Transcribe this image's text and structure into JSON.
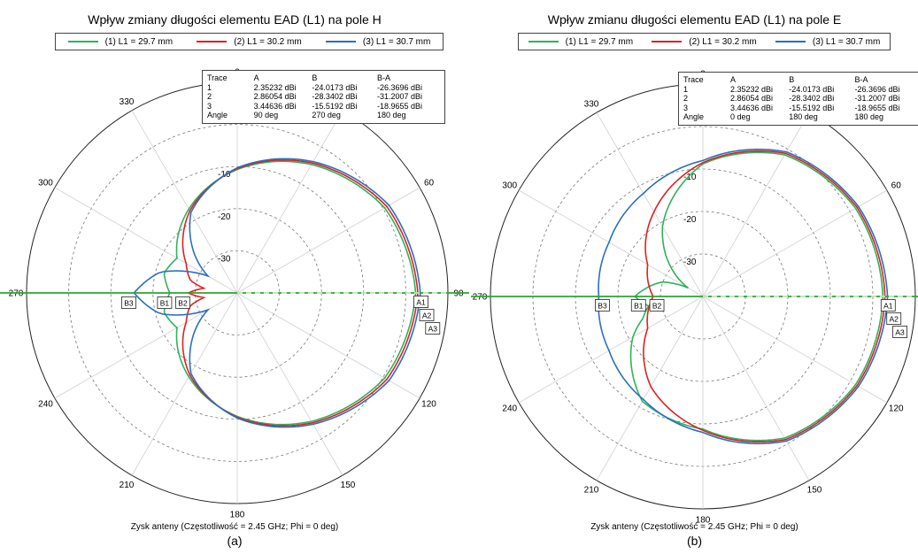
{
  "panels": [
    {
      "title": "Wpływ zmiany długości elementu EAD (L1) na pole H",
      "xlabel": "Zysk anteny (Częstotliwość = 2.45 GHz; Phi = 0 deg)",
      "caption": "(a)",
      "legend": [
        "(1) L1 = 29.7 mm",
        "(2) L1 = 30.2 mm",
        "(3) L1 = 30.7 mm"
      ],
      "marker_table": {
        "headers": [
          "Trace",
          "A",
          "B",
          "B-A"
        ],
        "rows": [
          [
            "1",
            "2.35232 dBi",
            "-24.0173 dBi",
            "-26.3696 dBi"
          ],
          [
            "2",
            "2.86054 dBi",
            "-28.3402 dBi",
            "-31.2007 dBi"
          ],
          [
            "3",
            "3.44636 dBi",
            "-15.5192 dBi",
            "-18.9655 dBi"
          ],
          [
            "Angle",
            "90 deg",
            "270 deg",
            "180 deg"
          ]
        ]
      },
      "markers": [
        "A1",
        "A2",
        "A3",
        "B1",
        "B2",
        "B3"
      ],
      "angle_labels": [
        "0",
        "30",
        "60",
        "90",
        "120",
        "150",
        "180",
        "210",
        "240",
        "270",
        "300",
        "330"
      ],
      "radial_labels": [
        "-10",
        "-20",
        "-30"
      ]
    },
    {
      "title": "Wpływ zmianu długości elementu EAD (L1) na pole E",
      "xlabel": "Zysk anteny (Częstotliwość = 2.45 GHz; Phi = 0 deg)",
      "caption": "(b)",
      "legend": [
        "(1) L1 = 29.7 mm",
        "(2) L1 = 30.2 mm",
        "(3) L1 = 30.7 mm"
      ],
      "marker_table": {
        "headers": [
          "Trace",
          "A",
          "B",
          "B-A"
        ],
        "rows": [
          [
            "1",
            "2.35232 dBi",
            "-24.0173 dBi",
            "-26.3696 dBi"
          ],
          [
            "2",
            "2.86054 dBi",
            "-28.3402 dBi",
            "-31.2007 dBi"
          ],
          [
            "3",
            "3.44636 dBi",
            "-15.5192 dBi",
            "-18.9655 dBi"
          ],
          [
            "Angle",
            "0 deg",
            "180 deg",
            "180 deg"
          ]
        ]
      },
      "markers": [
        "A1",
        "A2",
        "A3",
        "B1",
        "B2",
        "B3"
      ],
      "angle_labels": [
        "90",
        "60",
        "30",
        "0",
        "330",
        "300",
        "270",
        "240",
        "210",
        "180",
        "150",
        "120"
      ],
      "radial_labels": [
        "-10",
        "-20",
        "-30"
      ]
    }
  ],
  "chart_data": [
    {
      "type": "polar-line",
      "title": "Wpływ zmiany długości elementu EAD (L1) na pole H",
      "xlabel": "Zysk anteny (Częstotliwość = 2.45 GHz; Phi = 0 deg)",
      "r_ticks": [
        -10,
        -20,
        -30
      ],
      "r_range": [
        -40,
        10
      ],
      "theta_labels": [
        0,
        30,
        60,
        90,
        120,
        150,
        180,
        210,
        240,
        270,
        300,
        330
      ],
      "colors": [
        "#2db35b",
        "#e02020",
        "#2a6fc0"
      ],
      "series": [
        {
          "name": "(1) L1 = 29.7 mm",
          "theta": [
            0,
            30,
            60,
            90,
            120,
            150,
            180,
            210,
            240,
            255,
            270,
            285,
            300,
            330
          ],
          "values": [
            -10.7,
            -4.8,
            0.4,
            2.35,
            0.4,
            -4.8,
            -10.7,
            -17.0,
            -23.5,
            -22.0,
            -24.0,
            -22.0,
            -23.5,
            -17.0
          ]
        },
        {
          "name": "(2) L1 = 30.2 mm",
          "theta": [
            0,
            30,
            60,
            90,
            120,
            150,
            180,
            210,
            240,
            255,
            262,
            270,
            278,
            285,
            300,
            330
          ],
          "values": [
            -10.5,
            -4.4,
            1.0,
            2.86,
            1.0,
            -4.4,
            -10.5,
            -17.5,
            -26.0,
            -28.5,
            -32.0,
            -28.34,
            -32.0,
            -28.5,
            -26.0,
            -17.5
          ]
        },
        {
          "name": "(3) L1 = 30.7 mm",
          "theta": [
            0,
            30,
            60,
            90,
            120,
            150,
            180,
            210,
            240,
            255,
            270,
            285,
            300,
            330
          ],
          "values": [
            -10.3,
            -4.0,
            1.6,
            3.45,
            1.6,
            -4.0,
            -10.3,
            -18.0,
            -32.0,
            -21.0,
            -15.5,
            -21.0,
            -32.0,
            -18.0
          ]
        }
      ],
      "marker_values": {
        "A": {
          "angle": 90,
          "values": [
            2.35232,
            2.86054,
            3.44636
          ]
        },
        "B": {
          "angle": 270,
          "values": [
            -24.0173,
            -28.3402,
            -15.5192
          ]
        }
      }
    },
    {
      "type": "polar-line",
      "title": "Wpływ zmianu długości elementu EAD (L1) na pole E",
      "xlabel": "Zysk anteny (Częstotliwość = 2.45 GHz; Phi = 0 deg)",
      "r_ticks": [
        -10,
        -20,
        -30
      ],
      "r_range": [
        -40,
        10
      ],
      "theta_labels": [
        90,
        60,
        30,
        0,
        330,
        300,
        270,
        240,
        210,
        180,
        150,
        120
      ],
      "colors": [
        "#2db35b",
        "#e02020",
        "#2a6fc0"
      ],
      "series": [
        {
          "name": "(1) L1 = 29.7 mm",
          "theta": [
            0,
            30,
            60,
            90,
            120,
            150,
            160,
            170,
            180,
            190,
            200,
            210,
            240,
            270,
            300,
            330
          ],
          "values": [
            2.35,
            1.5,
            -1.5,
            -8.8,
            -21.0,
            -36.0,
            -30.0,
            -27.0,
            -24.0,
            -27.0,
            -25.0,
            -21.0,
            -11.5,
            -8.8,
            -1.5,
            1.5
          ]
        },
        {
          "name": "(2) L1 = 30.2 mm",
          "theta": [
            0,
            30,
            60,
            90,
            120,
            150,
            180,
            210,
            240,
            270,
            300,
            330
          ],
          "values": [
            2.86,
            1.9,
            -1.1,
            -8.5,
            -17.0,
            -25.0,
            -28.3,
            -25.0,
            -15.5,
            -8.5,
            -1.1,
            1.9
          ]
        },
        {
          "name": "(3) L1 = 30.7 mm",
          "theta": [
            0,
            30,
            60,
            90,
            120,
            150,
            180,
            210,
            240,
            270,
            300,
            330
          ],
          "values": [
            3.45,
            2.3,
            -0.7,
            -8.0,
            -12.0,
            -14.5,
            -15.5,
            -14.5,
            -12.0,
            -8.0,
            -0.7,
            2.3
          ]
        }
      ],
      "marker_values": {
        "A": {
          "angle": 0,
          "values": [
            2.35232,
            2.86054,
            3.44636
          ]
        },
        "B": {
          "angle": 180,
          "values": [
            -24.0173,
            -28.3402,
            -15.5192
          ]
        }
      }
    }
  ]
}
